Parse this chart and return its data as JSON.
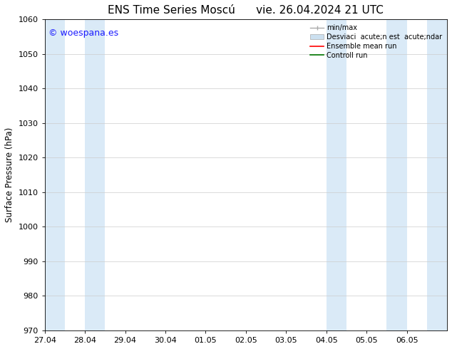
{
  "title_left": "ENS Time Series Moscú",
  "title_right": "vie. 26.04.2024 21 UTC",
  "ylabel": "Surface Pressure (hPa)",
  "ylim": [
    970,
    1060
  ],
  "yticks": [
    970,
    980,
    990,
    1000,
    1010,
    1020,
    1030,
    1040,
    1050,
    1060
  ],
  "xlim_start": 0,
  "xlim_end": 10,
  "xtick_labels": [
    "27.04",
    "28.04",
    "29.04",
    "30.04",
    "01.05",
    "02.05",
    "03.05",
    "04.05",
    "05.05",
    "06.05"
  ],
  "xtick_positions": [
    0,
    1,
    2,
    3,
    4,
    5,
    6,
    7,
    8,
    9
  ],
  "shaded_bands": [
    {
      "x_start": 0.0,
      "x_end": 0.5,
      "color": "#daeaf7"
    },
    {
      "x_start": 1.0,
      "x_end": 1.5,
      "color": "#daeaf7"
    },
    {
      "x_start": 7.0,
      "x_end": 7.5,
      "color": "#daeaf7"
    },
    {
      "x_start": 8.5,
      "x_end": 9.0,
      "color": "#daeaf7"
    },
    {
      "x_start": 9.5,
      "x_end": 10.0,
      "color": "#daeaf7"
    }
  ],
  "watermark_text": "© woespana.es",
  "watermark_color": "#1a1aff",
  "background_color": "#ffffff",
  "legend_label_minmax": "min/max",
  "legend_label_std": "Desviaci  acute;n est  acute;ndar",
  "legend_label_ensemble": "Ensemble mean run",
  "legend_label_control": "Controll run",
  "legend_color_minmax": "#aaaaaa",
  "legend_color_std": "#cce0f0",
  "legend_color_ensemble": "#ff0000",
  "legend_color_control": "#007700",
  "grid_color": "#cccccc",
  "tick_fontsize": 8,
  "label_fontsize": 8.5,
  "title_fontsize": 11,
  "watermark_fontsize": 9
}
